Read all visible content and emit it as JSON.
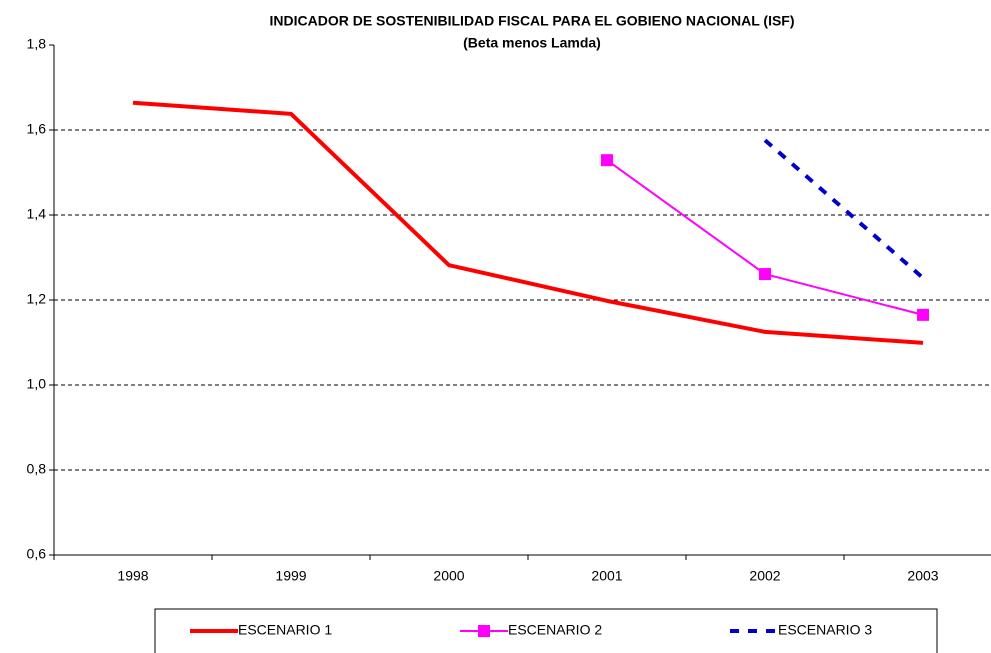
{
  "chart_data": {
    "type": "line",
    "title": "INDICADOR DE SOSTENIBILIDAD FISCAL  PARA EL GOBIENO NACIONAL (ISF)",
    "subtitle": "(Beta menos Lamda)",
    "categories": [
      "1998",
      "1999",
      "2000",
      "2001",
      "2002",
      "2003"
    ],
    "series": [
      {
        "name": "ESCENARIO 1",
        "color": "#ff0000",
        "values": [
          1.664,
          1.638,
          1.282,
          1.198,
          1.125,
          1.099
        ]
      },
      {
        "name": "ESCENARIO 2",
        "color": "#ff00ff",
        "marker": "square",
        "values": [
          null,
          null,
          null,
          1.529,
          1.261,
          1.165
        ]
      },
      {
        "name": "ESCENARIO 3",
        "color": "#0000cc",
        "dash": true,
        "values": [
          null,
          null,
          null,
          null,
          1.576,
          1.252
        ]
      }
    ],
    "ylim": [
      0.6,
      1.8
    ],
    "yticks": [
      {
        "value": 0.6,
        "label": "0,6"
      },
      {
        "value": 0.8,
        "label": "0,8"
      },
      {
        "value": 1.0,
        "label": "1,0"
      },
      {
        "value": 1.2,
        "label": "1,2"
      },
      {
        "value": 1.4,
        "label": "1,4"
      },
      {
        "value": 1.6,
        "label": "1,6"
      },
      {
        "value": 1.8,
        "label": "1,8"
      }
    ],
    "grid": true,
    "legend": "bottom"
  }
}
